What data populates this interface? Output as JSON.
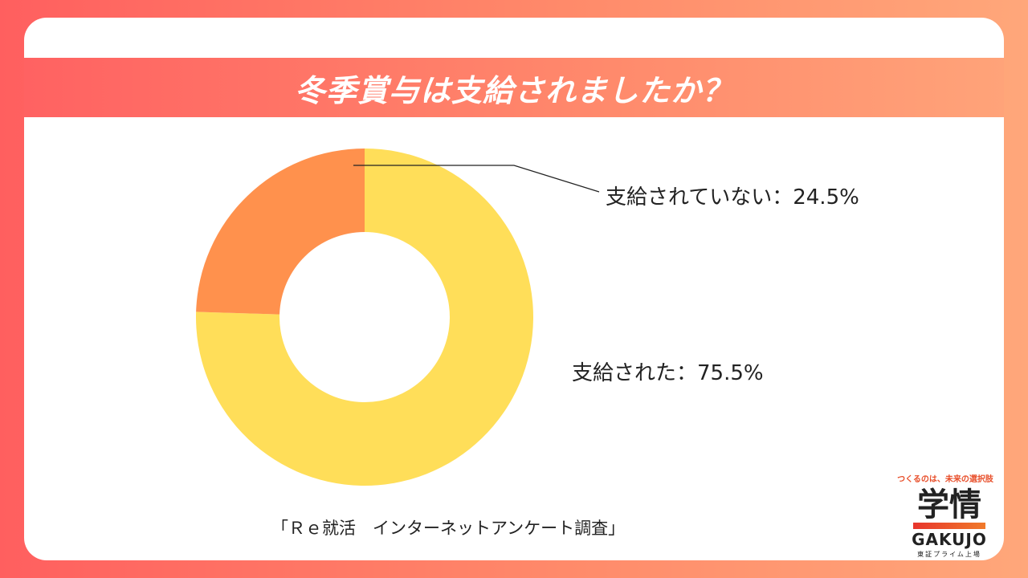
{
  "title": "冬季賞与は支給されましたか？",
  "chart_data": {
    "type": "pie",
    "style": "donut",
    "categories": [
      "支給されていない",
      "支給された"
    ],
    "values": [
      24.5,
      75.5
    ],
    "colors": [
      "#ff914d",
      "#ffde59"
    ],
    "labels": [
      "支給されていない：24.5%",
      "支給された：75.5%"
    ]
  },
  "source": "「Ｒｅ就活　インターネットアンケート調査」",
  "logo": {
    "tagline": "つくるのは、未来の選択肢",
    "name_kanji": "学情",
    "name_roman": "GAKUJO",
    "listed": "東証プライム上場",
    "bar_color": "#e8352c"
  }
}
